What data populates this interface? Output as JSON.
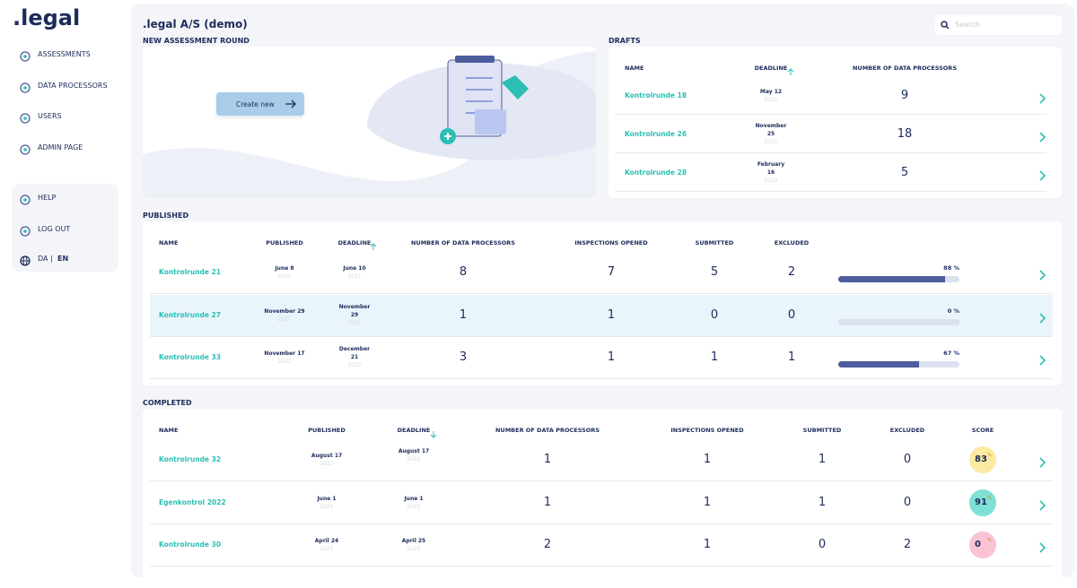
{
  "sidebar": {
    "logo": ".legal",
    "nav": [
      "ASSESSMENTS",
      "DATA PROCESSORS",
      "USERS",
      "ADMIN PAGE"
    ],
    "bottom": [
      "HELP",
      "LOG OUT"
    ],
    "language": {
      "da": "DA",
      "separator": "|",
      "en": "EN"
    }
  },
  "header": {
    "title": ".legal A/S (demo)",
    "search_placeholder": "Search"
  },
  "new_assessment": {
    "title": "NEW ASSESSMENT ROUND",
    "button": "Create new"
  },
  "drafts": {
    "title": "DRAFTS",
    "columns": [
      "NAME",
      "DEADLINE",
      "NUMBER OF DATA PROCESSORS"
    ],
    "rows": [
      {
        "name": "Kontrolrunde 18",
        "deadline": "May 12",
        "deadline_year": "2021",
        "processors": 9
      },
      {
        "name": "Kontrolrunde 26",
        "deadline": "November 25",
        "deadline_year": "2021",
        "processors": 18
      },
      {
        "name": "Kontrolrunde 28",
        "deadline": "February 16",
        "deadline_year": "2022",
        "processors": 5
      }
    ]
  },
  "published": {
    "title": "PUBLISHED",
    "columns": [
      "NAME",
      "PUBLISHED",
      "DEADLINE",
      "NUMBER OF DATA PROCESSORS",
      "INSPECTIONS OPENED",
      "SUBMITTED",
      "EXCLUDED"
    ],
    "rows": [
      {
        "name": "Kontrolrunde 21",
        "published": "June 8",
        "published_year": "2021",
        "deadline": "June 10",
        "deadline_year": "2021",
        "processors": 8,
        "inspections": 7,
        "submitted": 5,
        "excluded": 2,
        "progress": 88,
        "progress_label": "88 %"
      },
      {
        "name": "Kontrolrunde 27",
        "published": "November 29",
        "published_year": "2021",
        "deadline": "November 29",
        "deadline_year": "2021",
        "processors": 1,
        "inspections": 1,
        "submitted": 0,
        "excluded": 0,
        "progress": 0,
        "progress_label": "0 %"
      },
      {
        "name": "Kontrolrunde 33",
        "published": "November 17",
        "published_year": "2022",
        "deadline": "December 21",
        "deadline_year": "2022",
        "processors": 3,
        "inspections": 1,
        "submitted": 1,
        "excluded": 1,
        "progress": 67,
        "progress_label": "67 %"
      }
    ]
  },
  "completed": {
    "title": "COMPLETED",
    "columns": [
      "NAME",
      "PUBLISHED",
      "DEADLINE",
      "NUMBER OF DATA PROCESSORS",
      "INSPECTIONS OPENED",
      "SUBMITTED",
      "EXCLUDED",
      "SCORE"
    ],
    "score_unit": "%",
    "rows": [
      {
        "name": "Kontrolrunde 32",
        "published": "August 17",
        "published_year": "2022",
        "deadline": "August 17",
        "deadline_year": "2022",
        "processors": 1,
        "inspections": 1,
        "submitted": 1,
        "excluded": 0,
        "score": 83,
        "score_color": "#fbeaa0"
      },
      {
        "name": "Egenkontrol 2022",
        "published": "June 1",
        "published_year": "2022",
        "deadline": "June 1",
        "deadline_year": "2022",
        "processors": 1,
        "inspections": 1,
        "submitted": 1,
        "excluded": 0,
        "score": 91,
        "score_color": "#7fe0d6"
      },
      {
        "name": "Kontrolrunde 30",
        "published": "April 24",
        "published_year": "2022",
        "deadline": "April 25",
        "deadline_year": "2022",
        "processors": 2,
        "inspections": 1,
        "submitted": 0,
        "excluded": 2,
        "score": 0,
        "score_color": "#f9c3d4"
      }
    ]
  }
}
